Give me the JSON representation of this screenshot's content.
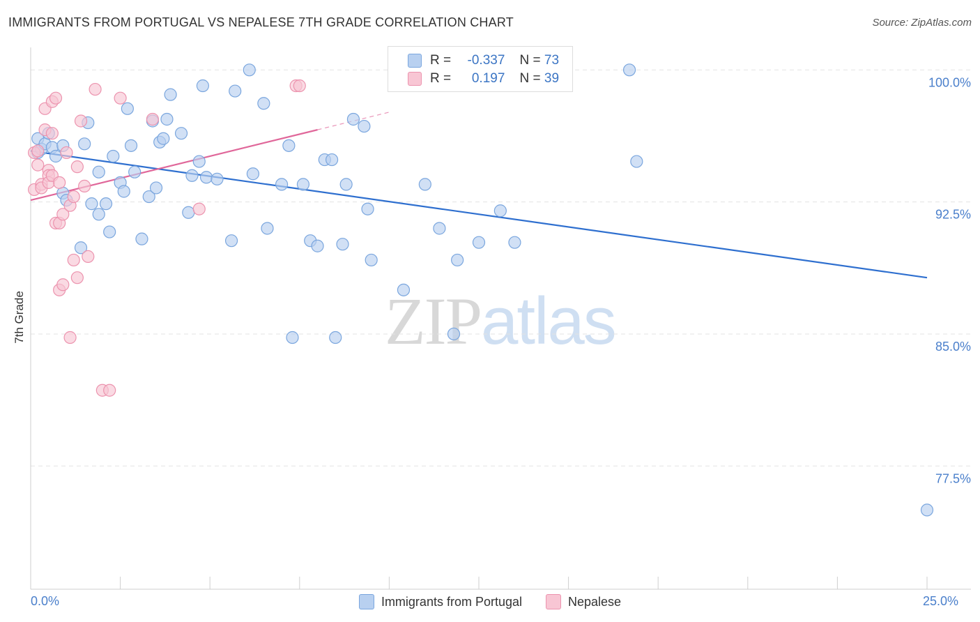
{
  "title": "IMMIGRANTS FROM PORTUGAL VS NEPALESE 7TH GRADE CORRELATION CHART",
  "source": "Source: ZipAtlas.com",
  "watermark": {
    "zip": "ZIP",
    "atlas": "atlas"
  },
  "legend_top": [
    {
      "r_label": "R =",
      "r_value": "-0.337",
      "n_label": "N =",
      "n_value": "73"
    },
    {
      "r_label": "R =",
      "r_value": "0.197",
      "n_label": "N =",
      "n_value": "39"
    }
  ],
  "colors": {
    "blue_fill": "#b8d0f0",
    "blue_stroke": "#7aa6de",
    "blue_line": "#2e6fcf",
    "pink_fill": "#f8c6d4",
    "pink_stroke": "#ec93ae",
    "pink_line": "#e0679a",
    "tick_label": "#4a7fcb",
    "grid": "#e3e3e3"
  },
  "chart_data": {
    "type": "scatter",
    "title": "IMMIGRANTS FROM PORTUGAL VS NEPALESE 7TH GRADE CORRELATION CHART",
    "xlabel": "",
    "ylabel": "7th Grade",
    "xlim": [
      0,
      25
    ],
    "ylim": [
      70.5,
      101.2
    ],
    "x_tick_labels": [
      "0.0%",
      "25.0%"
    ],
    "y_ticks": [
      100.0,
      92.5,
      85.0,
      77.5
    ],
    "y_tick_labels": [
      "100.0%",
      "92.5%",
      "85.0%",
      "77.5%"
    ],
    "grid": true,
    "legend": "bottom-center",
    "series": [
      {
        "name": "Immigrants from Portugal",
        "color": "#b8d0f0",
        "trend": {
          "x": [
            0,
            25
          ],
          "y": [
            95.4,
            88.2
          ]
        },
        "points": [
          [
            0.2,
            95.3
          ],
          [
            0.2,
            96.1
          ],
          [
            0.3,
            95.5
          ],
          [
            0.4,
            95.8
          ],
          [
            0.5,
            96.4
          ],
          [
            0.6,
            95.6
          ],
          [
            0.7,
            95.1
          ],
          [
            0.9,
            95.7
          ],
          [
            0.9,
            93.0
          ],
          [
            1.0,
            92.6
          ],
          [
            1.4,
            89.9
          ],
          [
            1.5,
            95.8
          ],
          [
            1.6,
            97.0
          ],
          [
            1.7,
            92.4
          ],
          [
            1.9,
            94.2
          ],
          [
            1.9,
            91.8
          ],
          [
            2.1,
            92.4
          ],
          [
            2.2,
            90.8
          ],
          [
            2.3,
            95.1
          ],
          [
            2.5,
            93.6
          ],
          [
            2.6,
            93.1
          ],
          [
            2.7,
            97.8
          ],
          [
            2.8,
            95.7
          ],
          [
            2.9,
            94.2
          ],
          [
            3.1,
            90.4
          ],
          [
            3.3,
            92.8
          ],
          [
            3.4,
            97.1
          ],
          [
            3.5,
            93.3
          ],
          [
            3.6,
            95.9
          ],
          [
            3.7,
            96.1
          ],
          [
            3.8,
            97.2
          ],
          [
            3.9,
            98.6
          ],
          [
            4.2,
            96.4
          ],
          [
            4.4,
            91.9
          ],
          [
            4.5,
            94.0
          ],
          [
            4.7,
            94.8
          ],
          [
            4.8,
            99.1
          ],
          [
            4.9,
            93.9
          ],
          [
            5.2,
            93.8
          ],
          [
            5.6,
            90.3
          ],
          [
            5.7,
            98.8
          ],
          [
            6.1,
            100.0
          ],
          [
            6.2,
            94.1
          ],
          [
            6.5,
            98.1
          ],
          [
            6.6,
            91.0
          ],
          [
            7.0,
            93.5
          ],
          [
            7.2,
            95.7
          ],
          [
            7.3,
            84.8
          ],
          [
            7.6,
            93.5
          ],
          [
            7.8,
            90.3
          ],
          [
            8.0,
            90.0
          ],
          [
            8.2,
            94.9
          ],
          [
            8.4,
            94.9
          ],
          [
            8.5,
            84.8
          ],
          [
            8.7,
            90.1
          ],
          [
            8.8,
            93.5
          ],
          [
            9.0,
            97.2
          ],
          [
            9.3,
            96.8
          ],
          [
            9.4,
            92.1
          ],
          [
            9.5,
            89.2
          ],
          [
            10.4,
            87.5
          ],
          [
            11.0,
            93.5
          ],
          [
            11.4,
            91.0
          ],
          [
            11.8,
            85.0
          ],
          [
            11.9,
            89.2
          ],
          [
            12.5,
            90.2
          ],
          [
            13.1,
            92.0
          ],
          [
            13.5,
            90.2
          ],
          [
            13.8,
            100.0
          ],
          [
            14.2,
            100.0
          ],
          [
            16.7,
            100.0
          ],
          [
            16.9,
            94.8
          ],
          [
            25.0,
            75.0
          ]
        ]
      },
      {
        "name": "Nepalese",
        "color": "#f8c6d4",
        "trend": {
          "x": [
            0,
            8
          ],
          "y": [
            92.6,
            96.6
          ]
        },
        "trend_dashed": {
          "x": [
            8,
            10
          ],
          "y": [
            96.6,
            97.6
          ]
        },
        "points": [
          [
            0.1,
            95.3
          ],
          [
            0.1,
            93.2
          ],
          [
            0.2,
            94.6
          ],
          [
            0.2,
            95.4
          ],
          [
            0.3,
            93.5
          ],
          [
            0.3,
            93.3
          ],
          [
            0.4,
            97.8
          ],
          [
            0.4,
            96.6
          ],
          [
            0.5,
            94.3
          ],
          [
            0.6,
            96.4
          ],
          [
            0.5,
            94.0
          ],
          [
            0.5,
            93.6
          ],
          [
            0.6,
            94.0
          ],
          [
            0.6,
            98.2
          ],
          [
            0.7,
            98.4
          ],
          [
            0.8,
            93.6
          ],
          [
            0.7,
            91.3
          ],
          [
            0.8,
            91.3
          ],
          [
            0.8,
            87.5
          ],
          [
            0.9,
            87.8
          ],
          [
            0.9,
            91.8
          ],
          [
            1.0,
            95.3
          ],
          [
            1.1,
            92.3
          ],
          [
            1.1,
            84.8
          ],
          [
            1.2,
            92.8
          ],
          [
            1.2,
            89.2
          ],
          [
            1.3,
            94.5
          ],
          [
            1.3,
            88.2
          ],
          [
            1.4,
            97.1
          ],
          [
            1.5,
            93.4
          ],
          [
            1.6,
            89.4
          ],
          [
            1.8,
            98.9
          ],
          [
            2.0,
            81.8
          ],
          [
            2.2,
            81.8
          ],
          [
            2.5,
            98.4
          ],
          [
            3.4,
            97.2
          ],
          [
            4.7,
            92.1
          ],
          [
            7.4,
            99.1
          ],
          [
            7.5,
            99.1
          ]
        ]
      }
    ]
  },
  "bottom_legend": [
    "Immigrants from Portugal",
    "Nepalese"
  ]
}
